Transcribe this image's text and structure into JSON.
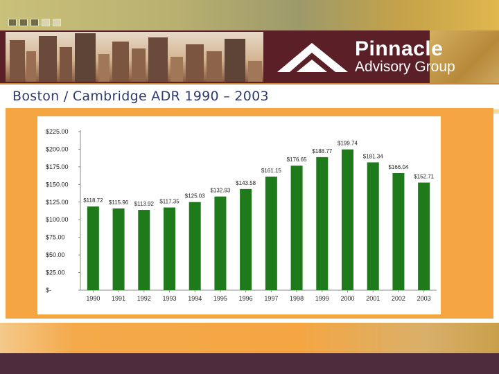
{
  "header": {
    "logo_name": "Pinnacle",
    "logo_sub": "Advisory Group"
  },
  "slide": {
    "title": "Boston / Cambridge ADR 1990 – 2003"
  },
  "colors": {
    "bar": "#1e7a1a",
    "banner": "#5a1f27",
    "panel": "#f5a643",
    "footer": "#4e2c3e",
    "title_text": "#2e3a6a"
  },
  "chart_data": {
    "type": "bar",
    "title": "",
    "xlabel": "",
    "ylabel": "",
    "categories": [
      "1990",
      "1991",
      "1992",
      "1993",
      "1994",
      "1995",
      "1996",
      "1997",
      "1998",
      "1999",
      "2000",
      "2001",
      "2002",
      "2003"
    ],
    "values": [
      118.72,
      115.96,
      113.92,
      117.35,
      125.03,
      132.93,
      143.58,
      161.15,
      176.65,
      188.77,
      199.74,
      181.34,
      166.04,
      152.71
    ],
    "labels": [
      "$118.72",
      "$115.96",
      "$113.92",
      "$117.35",
      "$125.03",
      "$132.93",
      "$143.58",
      "$161.15",
      "$176.65",
      "$188.77",
      "$199.74",
      "$181.34",
      "$166.04",
      "$152.71"
    ],
    "ylim": [
      0,
      225
    ],
    "y_ticks": [
      225,
      200,
      175,
      150,
      125,
      100,
      75,
      50,
      25,
      0
    ],
    "y_tick_labels": [
      "$225.00",
      "$200.00",
      "$175.00",
      "$150.00",
      "$125.00",
      "$100.00",
      "$75.00",
      "$50.00",
      "$25.00",
      "$-"
    ],
    "grid": false,
    "legend": "none"
  }
}
